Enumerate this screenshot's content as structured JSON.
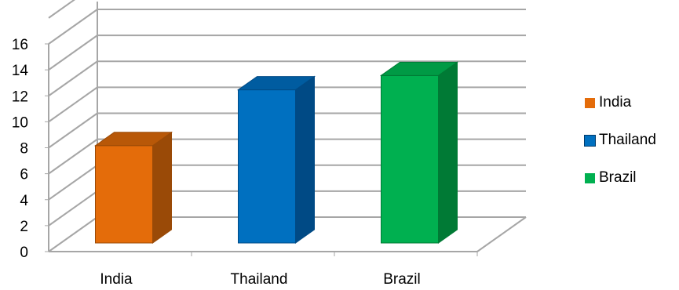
{
  "chart_data": {
    "type": "bar",
    "categories": [
      "India",
      "Thailand",
      "Brazil"
    ],
    "series": [
      {
        "name": "India",
        "values": [
          7.5,
          null,
          null
        ],
        "color": "#E46C0A",
        "side": "#9A4A07",
        "top": "#B85808"
      },
      {
        "name": "Thailand",
        "values": [
          null,
          11.8,
          null
        ],
        "color": "#0070C0",
        "side": "#004A85",
        "top": "#005CA0"
      },
      {
        "name": "Brazil",
        "values": [
          null,
          null,
          12.9
        ],
        "color": "#00B050",
        "side": "#007A35",
        "top": "#009A45"
      }
    ],
    "ylim": [
      0,
      16
    ],
    "yticks": [
      "0",
      "2",
      "4",
      "6",
      "8",
      "10",
      "12",
      "14",
      "16"
    ],
    "grid": true,
    "legend_position": "right",
    "title": "",
    "xlabel": "",
    "ylabel": ""
  }
}
